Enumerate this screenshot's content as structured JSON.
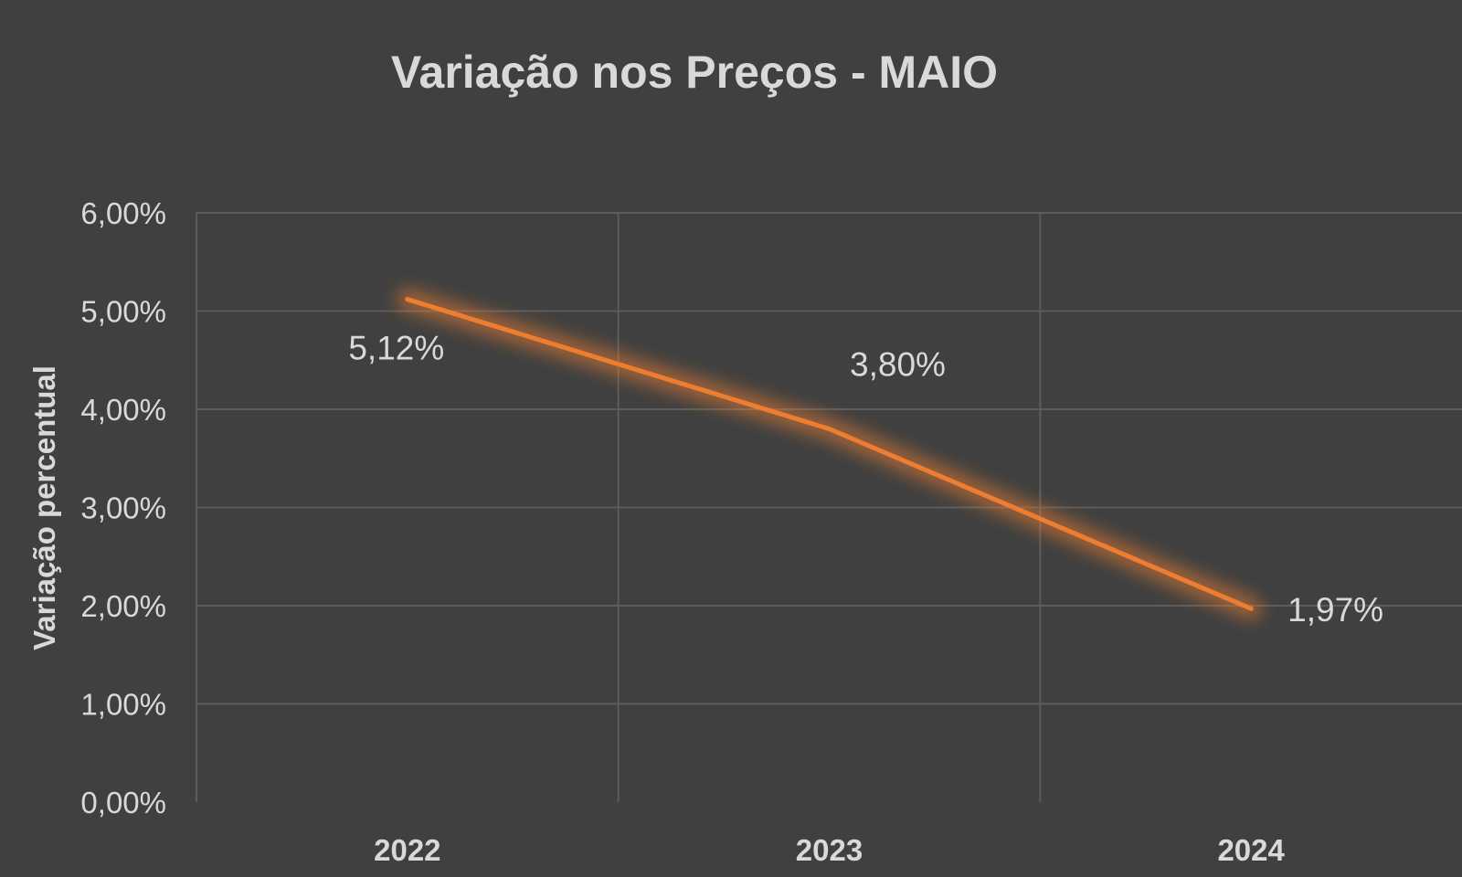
{
  "chart_data": {
    "type": "line",
    "title": "Variação nos Preços - MAIO",
    "xlabel": "",
    "ylabel": "Variação percentual",
    "categories": [
      "2022",
      "2023",
      "2024"
    ],
    "series": [
      {
        "values": [
          5.12,
          3.8,
          1.97
        ],
        "data_labels": [
          "5,12%",
          "3,80%",
          "1,97%"
        ],
        "color": "#ed7d31"
      }
    ],
    "ylim": [
      0,
      6
    ],
    "yticks": [
      0,
      1,
      2,
      3,
      4,
      5,
      6
    ],
    "ytick_labels": [
      "0,00%",
      "1,00%",
      "2,00%",
      "3,00%",
      "4,00%",
      "5,00%",
      "6,00%"
    ],
    "grid": true,
    "legend": "none"
  },
  "colors": {
    "background": "#404040",
    "grid": "#5c5c5c",
    "text": "#d9d9d9",
    "line": "#ed7d31"
  }
}
